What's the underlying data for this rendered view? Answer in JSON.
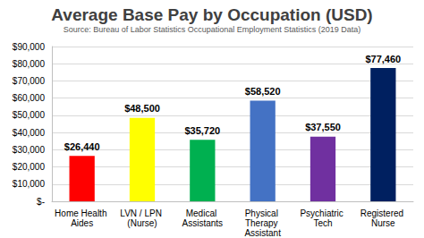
{
  "chart_data": {
    "type": "bar",
    "title": "Average Base Pay by Occupation (USD)",
    "subtitle": "Source: Bureau of Labor Statistics Occupational Employment Statistics (2019 Data)",
    "categories": [
      "Home Health Aides",
      "LVN / LPN (Nurse)",
      "Medical Assistants",
      "Physical Therapy Assistant",
      "Psychiatric Tech",
      "Registered Nurse"
    ],
    "values": [
      26440,
      48500,
      35720,
      58520,
      37550,
      77460
    ],
    "value_labels": [
      "$26,440",
      "$48,500",
      "$35,720",
      "$58,520",
      "$37,550",
      "$77,460"
    ],
    "colors": [
      "#ff0000",
      "#ffff00",
      "#00b050",
      "#4472c4",
      "#7030a0",
      "#002060"
    ],
    "ylim": [
      0,
      90000
    ],
    "yticks": [
      {
        "value": 0,
        "label": "$-"
      },
      {
        "value": 10000,
        "label": "$10,000"
      },
      {
        "value": 20000,
        "label": "$20,000"
      },
      {
        "value": 30000,
        "label": "$30,000"
      },
      {
        "value": 40000,
        "label": "$40,000"
      },
      {
        "value": 50000,
        "label": "$50,000"
      },
      {
        "value": 60000,
        "label": "$60,000"
      },
      {
        "value": 70000,
        "label": "$70,000"
      },
      {
        "value": 80000,
        "label": "$80,000"
      },
      {
        "value": 90000,
        "label": "$90,000"
      }
    ],
    "grid": true,
    "data_labels": true
  }
}
